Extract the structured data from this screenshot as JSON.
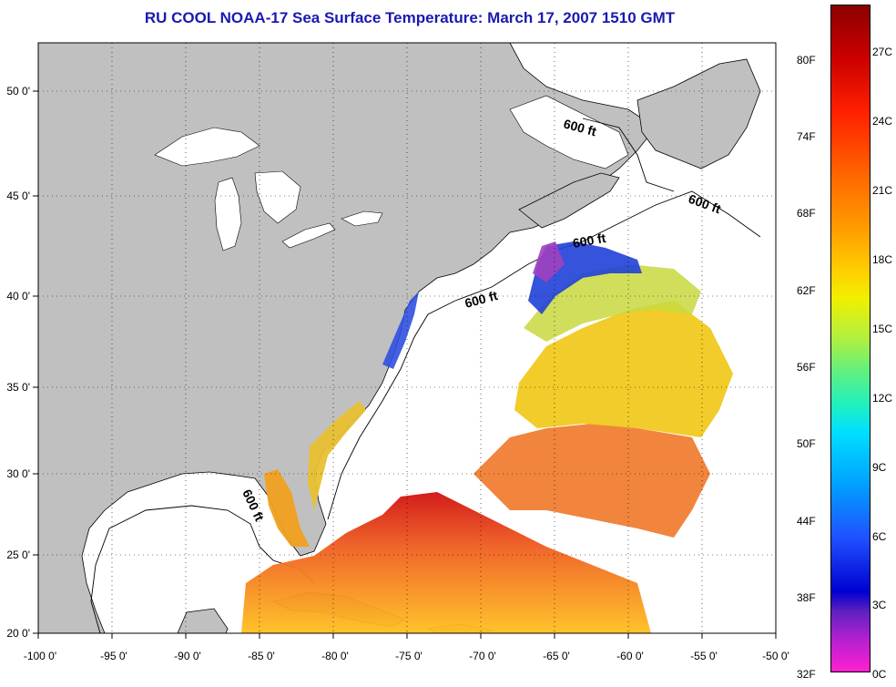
{
  "title": "RU COOL  NOAA-17  Sea Surface Temperature:  March 17, 2007 1510 GMT",
  "map": {
    "lon_ticks": [
      "-100 0'",
      "-95 0'",
      "-90 0'",
      "-85 0'",
      "-80 0'",
      "-75 0'",
      "-70 0'",
      "-65 0'",
      "-60 0'",
      "-55 0'",
      "-50 0'"
    ],
    "lat_ticks": [
      "50 0'",
      "45 0'",
      "40 0'",
      "35 0'",
      "30 0'",
      "25 0'",
      "20 0'"
    ],
    "contour_labels": [
      "600 ft",
      "600 ft",
      "600 ft",
      "600 ft",
      "600 ft"
    ],
    "colors": {
      "land": "#c0c0c0",
      "water": "#ffffff"
    }
  },
  "colorbar": {
    "fahrenheit": [
      "80F",
      "74F",
      "68F",
      "62F",
      "56F",
      "50F",
      "44F",
      "38F",
      "32F"
    ],
    "celsius": [
      "27C",
      "24C",
      "21C",
      "18C",
      "15C",
      "12C",
      "9C",
      "6C",
      "3C",
      "0C"
    ]
  }
}
